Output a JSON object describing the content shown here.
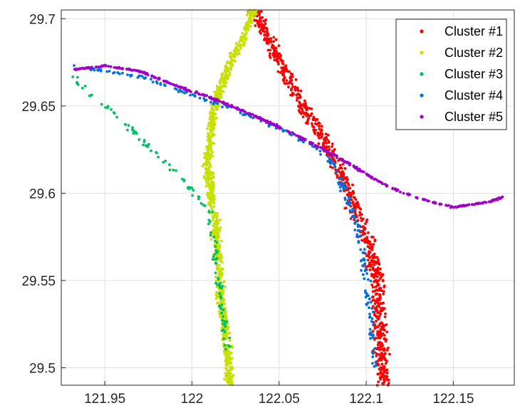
{
  "chart_data": {
    "type": "scatter",
    "title": "",
    "xlabel": "",
    "ylabel": "",
    "xlim": [
      121.925,
      122.185
    ],
    "ylim": [
      29.49,
      29.705
    ],
    "xticks": [
      121.95,
      122,
      122.05,
      122.1,
      122.15
    ],
    "xtick_labels": [
      "121.95",
      "122",
      "122.05",
      "122.1",
      "122.15"
    ],
    "yticks": [
      29.5,
      29.55,
      29.6,
      29.65,
      29.7
    ],
    "ytick_labels": [
      "29.5",
      "29.55",
      "29.6",
      "29.65",
      "29.7"
    ],
    "grid": true,
    "legend_position": "top-right",
    "series": [
      {
        "name": "Cluster #1",
        "color": "#ff0000",
        "path": [
          [
            122.036,
            29.705
          ],
          [
            122.04,
            29.695
          ],
          [
            122.048,
            29.68
          ],
          [
            122.058,
            29.66
          ],
          [
            122.07,
            29.64
          ],
          [
            122.082,
            29.62
          ],
          [
            122.09,
            29.6
          ],
          [
            122.1,
            29.575
          ],
          [
            122.106,
            29.55
          ],
          [
            122.108,
            29.525
          ],
          [
            122.11,
            29.49
          ]
        ],
        "spread_x": 0.006,
        "count": 850
      },
      {
        "name": "Cluster #2",
        "color": "#c8e000",
        "path": [
          [
            122.035,
            29.705
          ],
          [
            122.03,
            29.69
          ],
          [
            122.022,
            29.675
          ],
          [
            122.016,
            29.66
          ],
          [
            122.012,
            29.645
          ],
          [
            122.01,
            29.63
          ],
          [
            122.009,
            29.615
          ],
          [
            122.011,
            29.6
          ],
          [
            122.013,
            29.585
          ],
          [
            122.015,
            29.565
          ],
          [
            122.016,
            29.545
          ],
          [
            122.018,
            29.53
          ],
          [
            122.02,
            29.515
          ],
          [
            122.022,
            29.49
          ]
        ],
        "spread_x": 0.0035,
        "count": 900
      },
      {
        "name": "Cluster #3",
        "color": "#00c060",
        "path": [
          [
            121.932,
            29.667
          ],
          [
            121.94,
            29.658
          ],
          [
            121.955,
            29.646
          ],
          [
            121.97,
            29.632
          ],
          [
            121.985,
            29.617
          ],
          [
            121.998,
            29.604
          ],
          [
            122.01,
            29.59
          ],
          [
            122.013,
            29.57
          ],
          [
            122.015,
            29.55
          ],
          [
            122.018,
            29.53
          ],
          [
            122.02,
            29.51
          ]
        ],
        "spread_x": 0.003,
        "count": 130
      },
      {
        "name": "Cluster #4",
        "color": "#0070e0",
        "path": [
          [
            121.933,
            29.673
          ],
          [
            121.95,
            29.67
          ],
          [
            121.97,
            29.667
          ],
          [
            121.99,
            29.66
          ],
          [
            122.01,
            29.653
          ],
          [
            122.03,
            29.646
          ],
          [
            122.05,
            29.637
          ],
          [
            122.07,
            29.627
          ],
          [
            122.08,
            29.618
          ],
          [
            122.088,
            29.6
          ],
          [
            122.095,
            29.58
          ],
          [
            122.1,
            29.55
          ],
          [
            122.103,
            29.52
          ],
          [
            122.105,
            29.5
          ]
        ],
        "spread_x": 0.003,
        "count": 240
      },
      {
        "name": "Cluster #5",
        "color": "#a000c8",
        "path": [
          [
            121.933,
            29.671
          ],
          [
            121.95,
            29.673
          ],
          [
            121.97,
            29.67
          ],
          [
            121.99,
            29.662
          ],
          [
            122.01,
            29.655
          ],
          [
            122.03,
            29.647
          ],
          [
            122.05,
            29.638
          ],
          [
            122.07,
            29.628
          ],
          [
            122.09,
            29.617
          ],
          [
            122.11,
            29.605
          ],
          [
            122.13,
            29.597
          ],
          [
            122.15,
            29.592
          ],
          [
            122.17,
            29.595
          ],
          [
            122.18,
            29.598
          ]
        ],
        "spread_x": 0.0015,
        "count": 500
      }
    ]
  }
}
